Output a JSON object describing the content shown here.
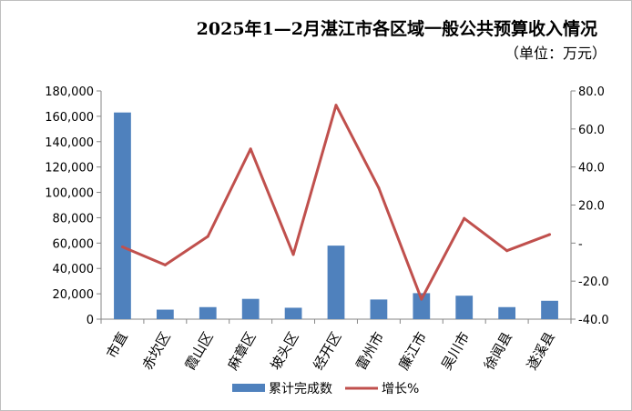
{
  "chart_data": {
    "type": "bar",
    "title": "2025年1—2月湛江市各区域一般公共预算收入情况",
    "subtitle": "（单位：万元）",
    "categories": [
      "市直",
      "赤坎区",
      "霞山区",
      "麻章区",
      "坡头区",
      "经开区",
      "雷州市",
      "廉江市",
      "吴川市",
      "徐闻县",
      "遂溪县"
    ],
    "series": [
      {
        "name": "累计完成数",
        "type": "bar",
        "axis": "left",
        "values": [
          163000,
          7500,
          9500,
          16000,
          9000,
          58000,
          15500,
          20500,
          18500,
          9500,
          14500
        ],
        "color": "#4f81bd"
      },
      {
        "name": "增长%",
        "type": "line",
        "axis": "right",
        "values": [
          -2.0,
          -11.5,
          3.5,
          49.5,
          -6.0,
          72.5,
          29.0,
          -29.5,
          13.0,
          -4.0,
          4.5
        ],
        "color": "#c0504d"
      }
    ],
    "y_left": {
      "ylim": [
        0,
        180000
      ],
      "ticks": [
        "0",
        "20,000",
        "40,000",
        "60,000",
        "80,000",
        "100,000",
        "120,000",
        "140,000",
        "160,000",
        "180,000"
      ]
    },
    "y_right": {
      "ylim": [
        -40,
        80
      ],
      "ticks": [
        "-40.0",
        "-20.0",
        "-",
        "20.0",
        "40.0",
        "60.0",
        "80.0"
      ]
    },
    "legend_position": "bottom",
    "grid": false
  }
}
